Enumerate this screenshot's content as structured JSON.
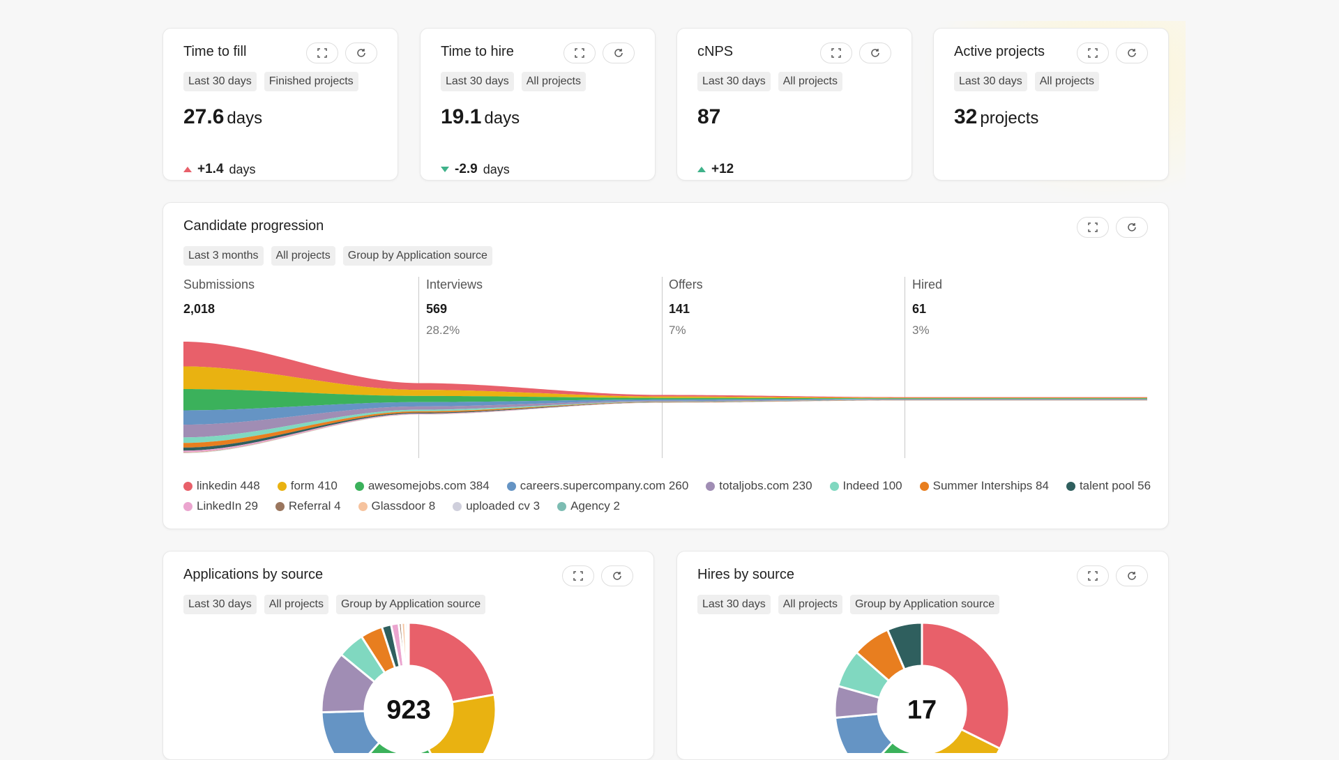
{
  "kpis": [
    {
      "title": "Time to fill",
      "tags": [
        "Last 30 days",
        "Finished projects"
      ],
      "value": "27.6",
      "unit": "days",
      "delta": "+1.4",
      "delta_unit": "days",
      "delta_dir": "up-red"
    },
    {
      "title": "Time to hire",
      "tags": [
        "Last 30 days",
        "All projects"
      ],
      "value": "19.1",
      "unit": "days",
      "delta": "-2.9",
      "delta_unit": "days",
      "delta_dir": "down-green"
    },
    {
      "title": "cNPS",
      "tags": [
        "Last 30 days",
        "All projects"
      ],
      "value": "87",
      "unit": "",
      "delta": "+12",
      "delta_unit": "",
      "delta_dir": "up-green"
    },
    {
      "title": "Active projects",
      "tags": [
        "Last 30 days",
        "All projects"
      ],
      "value": "32",
      "unit": "projects",
      "delta": "",
      "delta_unit": "",
      "delta_dir": ""
    }
  ],
  "progression": {
    "title": "Candidate progression",
    "tags": [
      "Last 3 months",
      "All projects",
      "Group by Application source"
    ],
    "stages": [
      {
        "name": "Submissions",
        "count": "2,018",
        "pct": ""
      },
      {
        "name": "Interviews",
        "count": "569",
        "pct": "28.2%"
      },
      {
        "name": "Offers",
        "count": "141",
        "pct": "7%"
      },
      {
        "name": "Hired",
        "count": "61",
        "pct": "3%"
      }
    ],
    "legend_rows": [
      [
        {
          "label": "linkedin 448",
          "color": "#e8606a"
        },
        {
          "label": "form 410",
          "color": "#e9b211"
        },
        {
          "label": "awesomejobs.com 384",
          "color": "#3bb15b"
        },
        {
          "label": "careers.supercompany.com 260",
          "color": "#6594c4"
        },
        {
          "label": "totaljobs.com 230",
          "color": "#a08db4"
        },
        {
          "label": "Indeed 100",
          "color": "#80d8c0"
        },
        {
          "label": "Summer Interships 84",
          "color": "#e87e1f"
        },
        {
          "label": "talent pool 56",
          "color": "#2f5f5e"
        }
      ],
      [
        {
          "label": "LinkedIn 29",
          "color": "#eba5cf"
        },
        {
          "label": "Referral 4",
          "color": "#9a765e"
        },
        {
          "label": "Glassdoor 8",
          "color": "#f6c39e"
        },
        {
          "label": "uploaded cv 3",
          "color": "#cfcfdc"
        },
        {
          "label": "Agency 2",
          "color": "#7cbcb2"
        }
      ]
    ]
  },
  "chart_data": [
    {
      "type": "area",
      "title": "Candidate progression",
      "categories": [
        "Submissions",
        "Interviews",
        "Offers",
        "Hired"
      ],
      "series": [
        {
          "name": "linkedin",
          "values": [
            448,
            122,
            28,
            11
          ]
        },
        {
          "name": "form",
          "values": [
            410,
            110,
            26,
            10
          ]
        },
        {
          "name": "awesomejobs.com",
          "values": [
            384,
            112,
            28,
            12
          ]
        },
        {
          "name": "careers.supercompany.com",
          "values": [
            260,
            78,
            22,
            10
          ]
        },
        {
          "name": "totaljobs.com",
          "values": [
            230,
            60,
            15,
            6
          ]
        },
        {
          "name": "Indeed",
          "values": [
            100,
            28,
            7,
            3
          ]
        },
        {
          "name": "Summer Interships",
          "values": [
            84,
            24,
            6,
            3
          ]
        },
        {
          "name": "talent pool",
          "values": [
            56,
            16,
            4,
            2
          ]
        },
        {
          "name": "LinkedIn",
          "values": [
            29,
            12,
            3,
            2
          ]
        },
        {
          "name": "Referral",
          "values": [
            4,
            2,
            1,
            1
          ]
        },
        {
          "name": "Glassdoor",
          "values": [
            8,
            3,
            1,
            1
          ]
        },
        {
          "name": "uploaded cv",
          "values": [
            3,
            1,
            0,
            0
          ]
        },
        {
          "name": "Agency",
          "values": [
            2,
            1,
            0,
            0
          ]
        }
      ]
    },
    {
      "type": "pie",
      "title": "Applications by source",
      "tags": [
        "Last 30 days",
        "All projects",
        "Group by Application source"
      ],
      "total": "923",
      "slices": [
        {
          "name": "linkedin",
          "value": 205,
          "color": "#e8606a"
        },
        {
          "name": "form",
          "value": 188,
          "color": "#e9b211"
        },
        {
          "name": "awesomejobs.com",
          "value": 176,
          "color": "#3bb15b"
        },
        {
          "name": "careers.supercompany.com",
          "value": 119,
          "color": "#6594c4"
        },
        {
          "name": "totaljobs.com",
          "value": 105,
          "color": "#a08db4"
        },
        {
          "name": "Indeed",
          "value": 46,
          "color": "#80d8c0"
        },
        {
          "name": "Summer Interships",
          "value": 38,
          "color": "#e87e1f"
        },
        {
          "name": "talent pool",
          "value": 16,
          "color": "#2f5f5e"
        },
        {
          "name": "LinkedIn",
          "value": 13,
          "color": "#eba5cf"
        },
        {
          "name": "Referral",
          "value": 5,
          "color": "#9a765e"
        },
        {
          "name": "Glassdoor",
          "value": 6,
          "color": "#f6c39e"
        },
        {
          "name": "uploaded cv",
          "value": 4,
          "color": "#cfcfdc"
        },
        {
          "name": "Agency",
          "value": 2,
          "color": "#7cbcb2"
        }
      ]
    },
    {
      "type": "pie",
      "title": "Hires by source",
      "tags": [
        "Last 30 days",
        "All projects",
        "Group by Application source"
      ],
      "total": "17",
      "slices": [
        {
          "name": "linkedin",
          "value": 5.5,
          "color": "#e8606a"
        },
        {
          "name": "form",
          "value": 2.5,
          "color": "#e9b211"
        },
        {
          "name": "awesomejobs.com",
          "value": 2.5,
          "color": "#3bb15b"
        },
        {
          "name": "careers.supercompany.com",
          "value": 2,
          "color": "#6594c4"
        },
        {
          "name": "totaljobs.com",
          "value": 1,
          "color": "#a08db4"
        },
        {
          "name": "Indeed",
          "value": 1.2,
          "color": "#80d8c0"
        },
        {
          "name": "Summer Interships",
          "value": 1.2,
          "color": "#e87e1f"
        },
        {
          "name": "talent pool",
          "value": 1.1,
          "color": "#2f5f5e"
        }
      ]
    }
  ]
}
